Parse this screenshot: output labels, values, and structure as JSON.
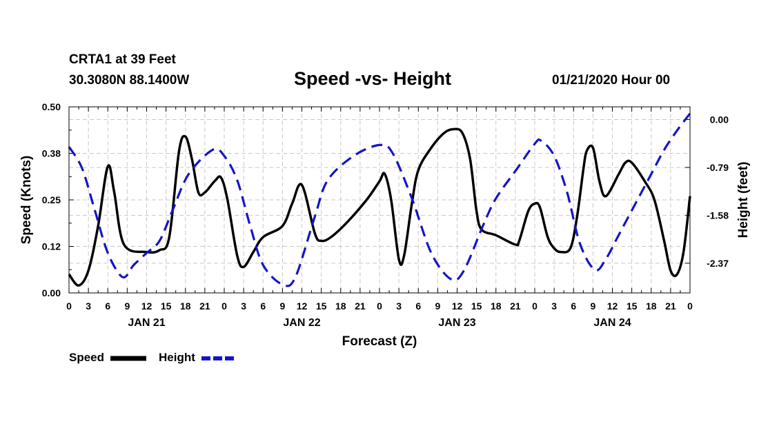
{
  "header": {
    "station": "CRTA1 at 39 Feet",
    "coords": "30.3080N 88.1400W",
    "title": "Speed -vs- Height",
    "run_time": "01/21/2020 Hour 00"
  },
  "chart_data": {
    "type": "line",
    "title": "Speed -vs- Height",
    "xlabel": "Forecast (Z)",
    "ylabel_left": "Speed (Knots)",
    "ylabel_right": "Height (feet)",
    "x_range_hours": [
      0,
      96
    ],
    "x_tick_labels": [
      "0",
      "3",
      "6",
      "9",
      "12",
      "15",
      "18",
      "21",
      "0",
      "3",
      "6",
      "9",
      "12",
      "15",
      "18",
      "21",
      "0",
      "3",
      "6",
      "9",
      "12",
      "15",
      "18",
      "21",
      "0",
      "3",
      "6",
      "9",
      "12",
      "15",
      "18",
      "21",
      "0"
    ],
    "date_labels": [
      {
        "label": "JAN 21",
        "hour": 12
      },
      {
        "label": "JAN 22",
        "hour": 36
      },
      {
        "label": "JAN 23",
        "hour": 60
      },
      {
        "label": "JAN 24",
        "hour": 84
      }
    ],
    "left_axis": {
      "range": [
        0,
        0.5
      ],
      "tick_values": [
        0,
        0.125,
        0.25,
        0.375,
        0.5
      ],
      "tick_labels": [
        "0.00",
        "0.12",
        "0.25",
        "0.38",
        "0.50"
      ]
    },
    "right_axis": {
      "range": [
        -2.86,
        0.21
      ],
      "tick_values": [
        0,
        -0.79,
        -1.58,
        -2.37
      ],
      "tick_labels": [
        "0.00",
        "-0.79",
        "-1.58",
        "-2.37"
      ]
    },
    "grid": true,
    "series": [
      {
        "name": "Speed",
        "axis": "left",
        "color": "#000000",
        "style": "solid",
        "points": [
          [
            0,
            0.05
          ],
          [
            1.5,
            0.02
          ],
          [
            3,
            0.06
          ],
          [
            4.5,
            0.18
          ],
          [
            6,
            0.34
          ],
          [
            7,
            0.27
          ],
          [
            8.5,
            0.13
          ],
          [
            12,
            0.11
          ],
          [
            14,
            0.115
          ],
          [
            15.5,
            0.15
          ],
          [
            17,
            0.38
          ],
          [
            18,
            0.42
          ],
          [
            19,
            0.36
          ],
          [
            20,
            0.27
          ],
          [
            21,
            0.27
          ],
          [
            22.5,
            0.3
          ],
          [
            23.5,
            0.31
          ],
          [
            24.5,
            0.25
          ],
          [
            26,
            0.1
          ],
          [
            27,
            0.07
          ],
          [
            28.5,
            0.11
          ],
          [
            30,
            0.15
          ],
          [
            33,
            0.18
          ],
          [
            34.5,
            0.24
          ],
          [
            36,
            0.29
          ],
          [
            38,
            0.16
          ],
          [
            39,
            0.14
          ],
          [
            40.5,
            0.15
          ],
          [
            43,
            0.19
          ],
          [
            46,
            0.25
          ],
          [
            48,
            0.3
          ],
          [
            48.8,
            0.32
          ],
          [
            49.8,
            0.25
          ],
          [
            51,
            0.09
          ],
          [
            51.8,
            0.1
          ],
          [
            53,
            0.24
          ],
          [
            54,
            0.33
          ],
          [
            56,
            0.39
          ],
          [
            58,
            0.43
          ],
          [
            59.5,
            0.44
          ],
          [
            60.8,
            0.43
          ],
          [
            62,
            0.36
          ],
          [
            63,
            0.22
          ],
          [
            63.8,
            0.17
          ],
          [
            66,
            0.155
          ],
          [
            69,
            0.13
          ],
          [
            69.6,
            0.14
          ],
          [
            71,
            0.22
          ],
          [
            72,
            0.24
          ],
          [
            72.8,
            0.23
          ],
          [
            74,
            0.15
          ],
          [
            75,
            0.12
          ],
          [
            76,
            0.11
          ],
          [
            77.5,
            0.12
          ],
          [
            78.5,
            0.2
          ],
          [
            79.5,
            0.33
          ],
          [
            80,
            0.38
          ],
          [
            81,
            0.39
          ],
          [
            82,
            0.3
          ],
          [
            83,
            0.26
          ],
          [
            85,
            0.32
          ],
          [
            86,
            0.35
          ],
          [
            87,
            0.35
          ],
          [
            89,
            0.3
          ],
          [
            90.5,
            0.25
          ],
          [
            92,
            0.14
          ],
          [
            93,
            0.06
          ],
          [
            94,
            0.05
          ],
          [
            95,
            0.11
          ],
          [
            96,
            0.26
          ]
        ]
      },
      {
        "name": "Height",
        "axis": "right",
        "color": "#1414c8",
        "style": "dashed",
        "points": [
          [
            0,
            -0.45
          ],
          [
            2,
            -0.8
          ],
          [
            4,
            -1.5
          ],
          [
            6,
            -2.2
          ],
          [
            8.3,
            -2.6
          ],
          [
            10,
            -2.4
          ],
          [
            12,
            -2.2
          ],
          [
            14,
            -2.0
          ],
          [
            16,
            -1.5
          ],
          [
            18.5,
            -0.9
          ],
          [
            22.2,
            -0.5
          ],
          [
            24,
            -0.6
          ],
          [
            26,
            -1.0
          ],
          [
            28,
            -1.75
          ],
          [
            30,
            -2.4
          ],
          [
            33,
            -2.72
          ],
          [
            35,
            -2.6
          ],
          [
            38,
            -1.6
          ],
          [
            40,
            -1.0
          ],
          [
            44,
            -0.6
          ],
          [
            48,
            -0.42
          ],
          [
            50,
            -0.55
          ],
          [
            53,
            -1.3
          ],
          [
            56,
            -2.2
          ],
          [
            59,
            -2.63
          ],
          [
            61,
            -2.5
          ],
          [
            64,
            -1.75
          ],
          [
            66,
            -1.3
          ],
          [
            69,
            -0.85
          ],
          [
            72,
            -0.4
          ],
          [
            73,
            -0.35
          ],
          [
            75,
            -0.6
          ],
          [
            77,
            -1.2
          ],
          [
            79,
            -2.05
          ],
          [
            81.3,
            -2.48
          ],
          [
            83,
            -2.3
          ],
          [
            85,
            -1.9
          ],
          [
            88,
            -1.3
          ],
          [
            90,
            -0.9
          ],
          [
            92,
            -0.5
          ],
          [
            94,
            -0.18
          ],
          [
            96,
            0.1
          ]
        ]
      }
    ],
    "legend": [
      {
        "label": "Speed",
        "color": "#000000",
        "style": "solid"
      },
      {
        "label": "Height",
        "color": "#1414c8",
        "style": "dashed"
      }
    ]
  }
}
